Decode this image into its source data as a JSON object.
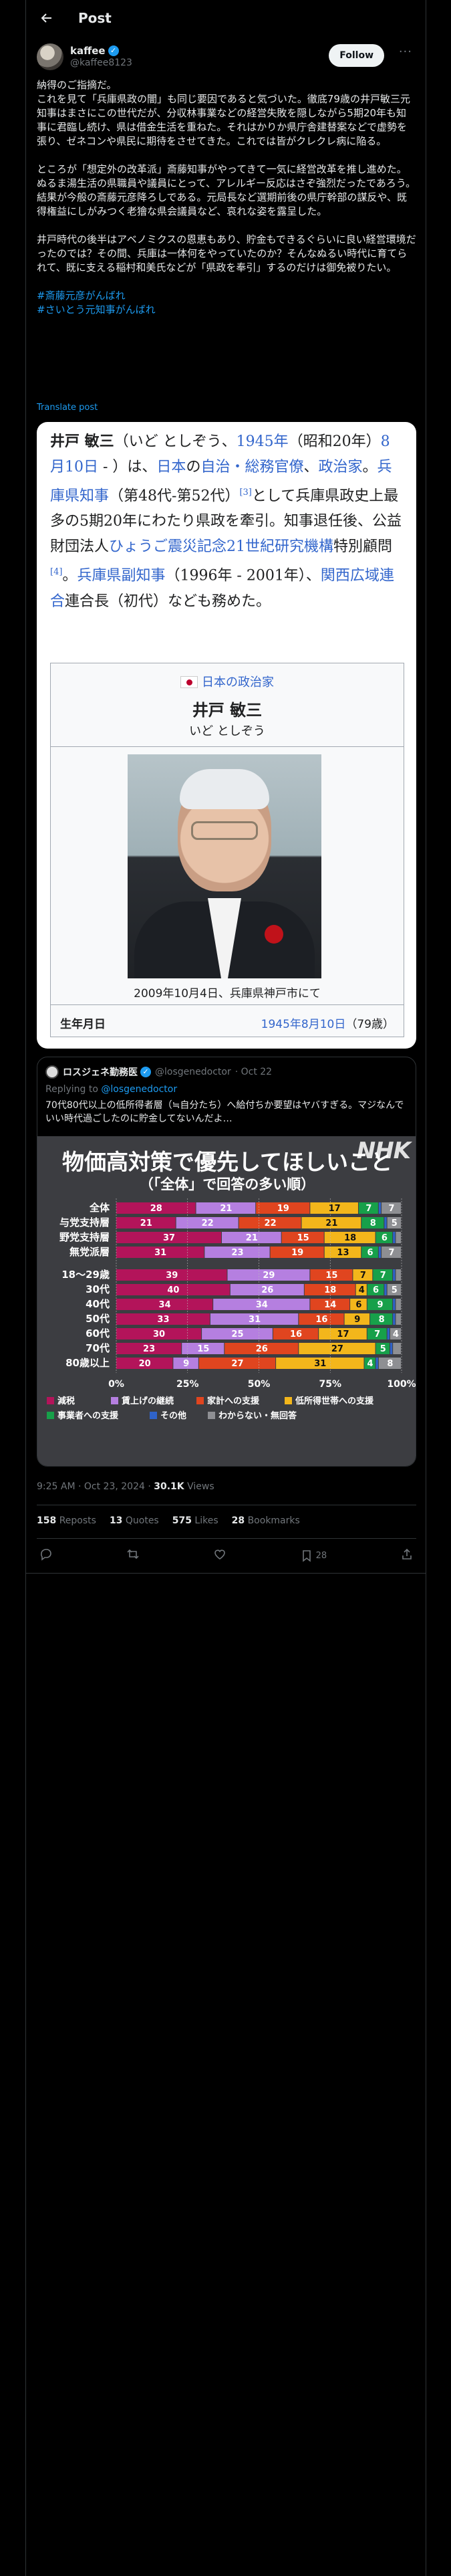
{
  "header": {
    "title": "Post"
  },
  "author": {
    "name": "kaffee",
    "handle": "@kaffee8123",
    "follow_label": "Follow"
  },
  "tweet": {
    "paragraphs": [
      "納得のご指摘だ。\nこれを見て「兵庫県政の闇」も同じ要因であると気づいた。徹底79歳の井戸敏三元知事はまさにこの世代だが、分収林事業などの経営失敗を隠しながら5期20年も知事に君臨し続け、県は借金生活を重ねた。それはかりか県庁舎建替案などで虚勢を張り、ゼネコンや県民に期待をさせてきた。これでは皆がクレクレ病に陥る。",
      "ところが「想定外の改革派」斎藤知事がやってきて一気に経営改革を推し進めた。ぬるま湯生活の県職員や議員にとって、アレルギー反応はさぞ強烈だったであろう。結果が今般の斎藤元彦降ろしである。元局長など選期前後の県庁幹部の謀反や、既得権益にしがみつく老獪な県会議員など、哀れな姿を露呈した。",
      "井戸時代の後半はアベノミクスの恩恵もあり、貯金もできるぐらいに良い経営環境だったのでは？その間、兵庫は一体何をやっていたのか？そんなぬるい時代に育てられて、既に支える稲村和美氏などが「県政を奉引」するのだけは御免被りたい。"
    ],
    "hashtags": [
      "#斎藤元彦がんばれ",
      "#さいとう元知事がんばれ"
    ],
    "translate_label": "Translate post"
  },
  "wiki": {
    "intro_name": "井戸 敏三",
    "intro_kana": "（いど としぞう、",
    "intro_year": "1945年",
    "intro_era": "（昭和20年）",
    "intro_date": "8月10日",
    "intro_t1": " - ）は、",
    "intro_country": "日本",
    "intro_t2": "の",
    "intro_jobs": "自治・総務官僚",
    "intro_t3": "、",
    "intro_pol": "政治家",
    "intro_t4": "。",
    "intro_gov": "兵庫県知事",
    "intro_t5": "（第48代-第52代）",
    "intro_ref1": "[3]",
    "intro_t6": "として兵庫県政史上最多の5期20年にわたり県政を牽引。知事退任後、公益財団法人",
    "intro_org": "ひょうご震災記念21世紀研究機構",
    "intro_t7": "特別顧問",
    "intro_ref2": "[4]",
    "intro_t8": "。",
    "intro_vice": "兵庫県副知事",
    "intro_t9": "（1996年 - 2001年）、",
    "intro_union": "関西広域連合",
    "intro_t10": "連合長（初代）なども務めた。",
    "infobox_cat": "日本の政治家",
    "infobox_name": "井戸 敏三",
    "infobox_kana": "いど としぞう",
    "photo_caption": "2009年10月4日、兵庫県神戸市にて",
    "birth_label": "生年月日",
    "birth_value": "1945年8月10日",
    "birth_age": "（79歳）"
  },
  "quote": {
    "name": "ロスジェネ勤務医",
    "handle": "@losgenedoctor",
    "date": "· Oct 22",
    "reply_prefix": "Replying to ",
    "reply_handle": "@losgenedoctor",
    "text": "70代80代以上の低所得者層（≒自分たち）へ給付ちか要望はヤバすぎる。マジなんでいい時代過ごしたのに貯金してないんだよ…",
    "nhk_logo": "NHK"
  },
  "chart_data": {
    "type": "bar",
    "stacked": true,
    "orientation": "horizontal",
    "title": "物価高対策で優先してほしいこと",
    "subtitle": "（「全体」で回答の多い順）",
    "categories": [
      "全体",
      "与党支持層",
      "野党支持層",
      "無党派層",
      "18～29歳",
      "30代",
      "40代",
      "50代",
      "60代",
      "70代",
      "80歳以上"
    ],
    "series": [
      {
        "name": "減税",
        "color": "#b3145a",
        "values": [
          28,
          21,
          37,
          31,
          39,
          40,
          34,
          33,
          30,
          23,
          20
        ]
      },
      {
        "name": "賃上げの継続",
        "color": "#b57fe0",
        "values": [
          21,
          22,
          21,
          23,
          29,
          26,
          34,
          31,
          25,
          15,
          9
        ]
      },
      {
        "name": "家計への支援",
        "color": "#e0451f",
        "values": [
          19,
          22,
          15,
          19,
          15,
          18,
          14,
          16,
          16,
          26,
          27
        ]
      },
      {
        "name": "低所得世帯への支援",
        "color": "#f3b61b",
        "values": [
          17,
          21,
          18,
          13,
          7,
          4,
          6,
          9,
          17,
          27,
          31
        ]
      },
      {
        "name": "事業者への支援",
        "color": "#17a04a",
        "values": [
          7,
          8,
          6,
          6,
          7,
          6,
          9,
          8,
          7,
          5,
          4
        ]
      },
      {
        "name": "その他",
        "color": "#2f63c9",
        "values": [
          1,
          1,
          1,
          1,
          1,
          1,
          1,
          1,
          1,
          1,
          1
        ]
      },
      {
        "name": "わからない・無回答",
        "color": "#8e8f93",
        "values": [
          7,
          5,
          2,
          7,
          2,
          5,
          2,
          2,
          4,
          3,
          8
        ]
      }
    ],
    "xticks": [
      "0%",
      "25%",
      "50%",
      "75%",
      "100%"
    ],
    "xlim": [
      0,
      100
    ]
  },
  "meta": {
    "timestamp": "9:25 AM · Oct 23, 2024 · ",
    "views": "30.1K",
    "views_label": " Views",
    "reposts": "158",
    "reposts_label": "Reposts",
    "quotes": "13",
    "quotes_label": "Quotes",
    "likes": "575",
    "likes_label": "Likes",
    "bookmarks": "28",
    "bookmarks_label": "Bookmarks",
    "bookmark_count": "28"
  }
}
